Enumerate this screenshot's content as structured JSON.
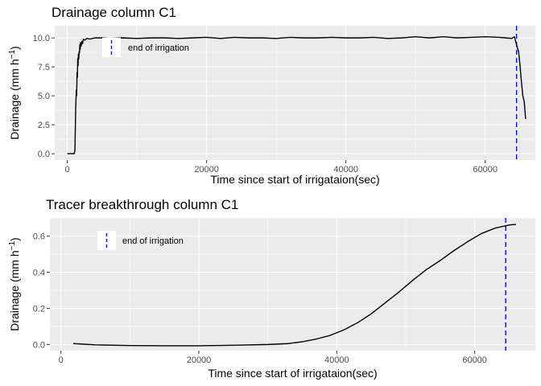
{
  "chart_data": [
    {
      "type": "line",
      "title": "Drainage column C1",
      "xlabel": "Time since start of irrigataion(sec)",
      "ylabel_main": "Drainage (mm h",
      "ylabel_sup": "−1",
      "ylabel_close": ")",
      "xlim": [
        -1800,
        67200
      ],
      "ylim": [
        -0.55,
        11.05
      ],
      "xticks": [
        0,
        20000,
        40000,
        60000
      ],
      "xtick_labels": [
        "0",
        "20000",
        "40000",
        "60000"
      ],
      "yticks": [
        0,
        2.5,
        5,
        7.5,
        10
      ],
      "ytick_labels": [
        "0.0",
        "2.5",
        "5.0",
        "7.5",
        "10.0"
      ],
      "grid": true,
      "legend_label": "end of irrigation",
      "legend_placement": "top-left",
      "vline": {
        "x": 64500,
        "color": "#0000ff",
        "label": "end of irrigation"
      },
      "series": [
        {
          "color": "#000000",
          "x": [
            0,
            1000,
            1100,
            1200,
            1300,
            1350,
            1400,
            1450,
            1500,
            1550,
            1600,
            1650,
            1700,
            1750,
            1800,
            1850,
            1900,
            2000,
            2100,
            2200,
            2300,
            2500,
            2800,
            3200,
            4000,
            5000,
            6000,
            8000,
            10000,
            12000,
            14000,
            16000,
            18000,
            20000,
            22000,
            24000,
            26000,
            28000,
            30000,
            32000,
            34000,
            36000,
            38000,
            40000,
            42000,
            44000,
            46000,
            48000,
            50000,
            52000,
            54000,
            56000,
            58000,
            60000,
            62000,
            63000,
            63800,
            64200,
            64500,
            64800,
            65000,
            65200,
            65400,
            65600,
            65800
          ],
          "y": [
            0,
            0,
            0.3,
            3.8,
            5.5,
            5.0,
            7.0,
            6.6,
            8.2,
            7.6,
            8.6,
            8.2,
            8.8,
            8.7,
            9.4,
            9.0,
            9.6,
            9.3,
            9.7,
            9.5,
            9.9,
            9.8,
            9.95,
            9.9,
            10.0,
            10.0,
            9.95,
            10.0,
            9.95,
            10.0,
            10.0,
            9.95,
            10.0,
            10.05,
            9.95,
            10.05,
            10.0,
            10.0,
            9.95,
            10.05,
            10.0,
            10.0,
            10.05,
            10.0,
            10.0,
            10.05,
            9.95,
            10.0,
            10.1,
            10.0,
            10.1,
            10.0,
            10.05,
            10.1,
            10.05,
            10.0,
            9.95,
            10.1,
            9.4,
            8.8,
            7.6,
            6.2,
            5.0,
            4.5,
            3.0
          ]
        }
      ]
    },
    {
      "type": "line",
      "title": "Tracer breakthrough column C1",
      "xlabel": "Time since start of irrigataion(sec)",
      "ylabel_main": "Drainage (mm h",
      "ylabel_sup": "−1",
      "ylabel_close": ")",
      "xlim": [
        -1600,
        68800
      ],
      "ylim": [
        -0.034,
        0.701
      ],
      "xticks": [
        0,
        20000,
        40000,
        60000
      ],
      "xtick_labels": [
        "0",
        "20000",
        "40000",
        "60000"
      ],
      "yticks": [
        0,
        0.2,
        0.4,
        0.6
      ],
      "ytick_labels": [
        "0.0",
        "0.2",
        "0.4",
        "0.6"
      ],
      "grid": true,
      "legend_label": "end of irrigation",
      "legend_placement": "top-left",
      "vline": {
        "x": 64500,
        "color": "#0000ff",
        "label": "end of irrigation"
      },
      "series": [
        {
          "color": "#000000",
          "x": [
            1800,
            5000,
            10000,
            15000,
            20000,
            25000,
            30000,
            33000,
            35000,
            37000,
            39000,
            41000,
            43000,
            45000,
            47000,
            49000,
            51000,
            53000,
            55000,
            57000,
            59000,
            61000,
            63000,
            65000,
            66000
          ],
          "y": [
            0.005,
            -0.002,
            -0.006,
            -0.007,
            -0.007,
            -0.004,
            0.0,
            0.005,
            0.015,
            0.03,
            0.05,
            0.08,
            0.12,
            0.17,
            0.23,
            0.29,
            0.355,
            0.415,
            0.465,
            0.52,
            0.57,
            0.615,
            0.645,
            0.662,
            0.665
          ]
        }
      ]
    }
  ]
}
